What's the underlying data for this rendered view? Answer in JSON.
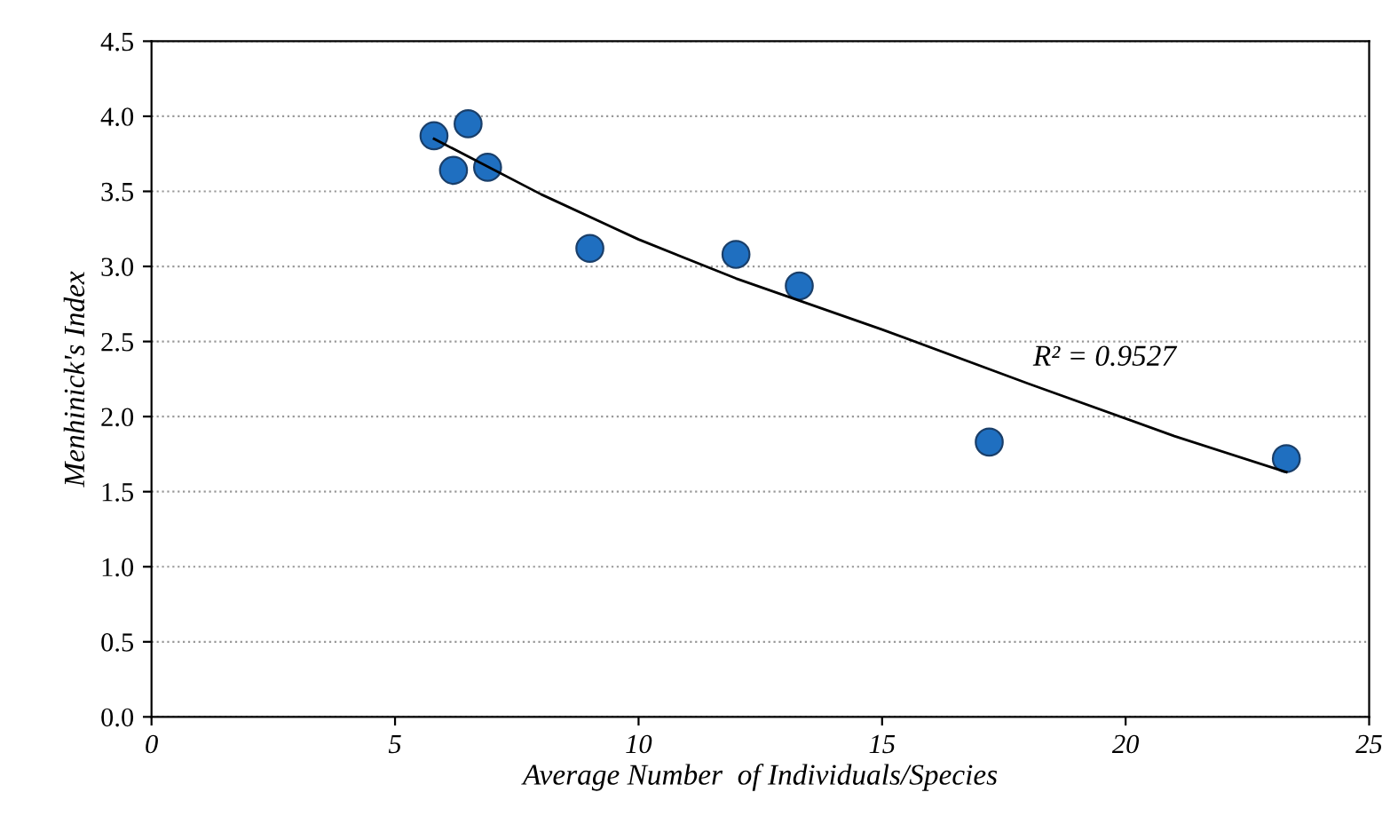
{
  "chart_data": {
    "type": "scatter",
    "xlabel": "Average Number  of Individuals/Species",
    "ylabel": "Menhinick's Index",
    "xlim": [
      0,
      25
    ],
    "xticks": [
      0,
      5,
      10,
      15,
      20,
      25
    ],
    "ylim": [
      0,
      4.5
    ],
    "yticks": [
      {
        "value": 0,
        "label": "0.0"
      },
      {
        "value": 0.5,
        "label": "0.5"
      },
      {
        "value": 1,
        "label": "1.0"
      },
      {
        "value": 1.5,
        "label": "1.5"
      },
      {
        "value": 2,
        "label": "2.0"
      },
      {
        "value": 2.5,
        "label": "2.5"
      },
      {
        "value": 3,
        "label": "3.0"
      },
      {
        "value": 3.5,
        "label": "3.5"
      },
      {
        "value": 4,
        "label": "4.0"
      },
      {
        "value": 4.5,
        "label": "4.5"
      }
    ],
    "grid": "y",
    "series": [
      {
        "marker": "circle",
        "color": "#1f6fc0",
        "x": [
          5.8,
          6.5,
          6.2,
          6.9,
          9.0,
          12.0,
          13.3,
          17.2,
          23.3
        ],
        "values": [
          3.87,
          3.95,
          3.64,
          3.66,
          3.12,
          3.08,
          2.87,
          1.83,
          1.72
        ]
      },
      {
        "type": "line",
        "color": "#000000",
        "line_style": "solid",
        "x": [
          5.8,
          8,
          10,
          12,
          15,
          18,
          21,
          23.3
        ],
        "values": [
          3.85,
          3.48,
          3.18,
          2.92,
          2.58,
          2.22,
          1.87,
          1.63
        ]
      }
    ],
    "annotations": [
      "R² = 0.9527"
    ]
  }
}
